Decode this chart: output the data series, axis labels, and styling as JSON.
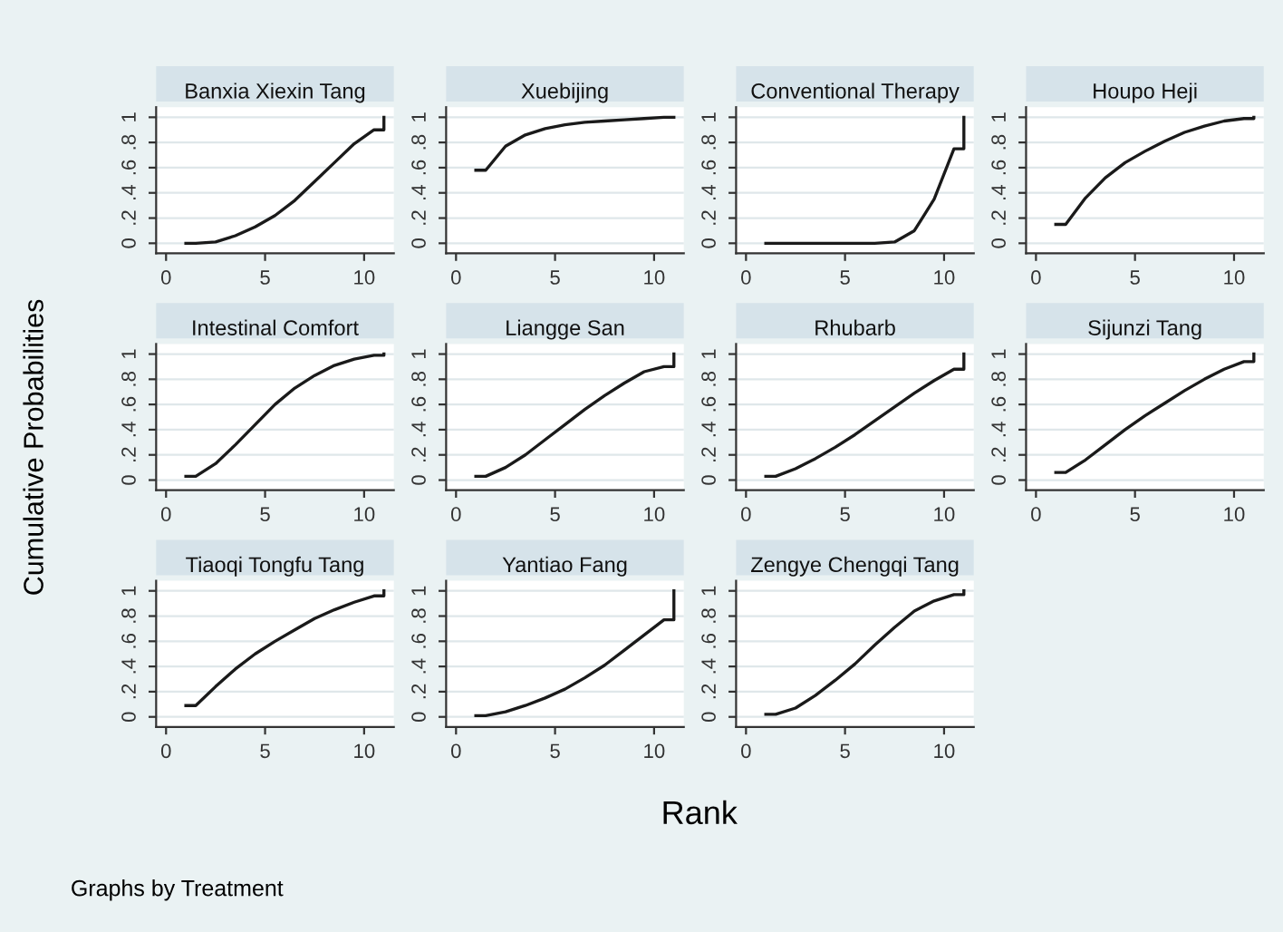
{
  "chart_data": [
    {
      "type": "line",
      "title": "Banxia Xiexin Tang",
      "x": [
        1,
        1.5,
        2.5,
        3.5,
        4.5,
        5.5,
        6.5,
        7.5,
        8.5,
        9.5,
        10.5,
        11,
        11
      ],
      "values": [
        0,
        0,
        0.01,
        0.06,
        0.13,
        0.22,
        0.34,
        0.49,
        0.64,
        0.79,
        0.9,
        0.9,
        1
      ],
      "color": "#1a1a1a",
      "xlim": [
        -0.5,
        11.5
      ],
      "ylim": [
        -0.08,
        1.08
      ],
      "xticks": [
        0,
        5,
        10
      ],
      "yticks": [
        0,
        {
          "value": 0.2,
          "label": ".2"
        },
        {
          "value": 0.4,
          "label": ".4"
        },
        {
          "value": 0.6,
          "label": ".6"
        },
        {
          "value": 0.8,
          "label": ".8"
        },
        1
      ],
      "grid": "y"
    },
    {
      "type": "line",
      "title": "Xuebijing",
      "x": [
        1,
        1.5,
        2.5,
        3.5,
        4.5,
        5.5,
        6.5,
        7.5,
        8.5,
        9.5,
        10.5,
        11,
        11
      ],
      "values": [
        0.58,
        0.58,
        0.77,
        0.86,
        0.91,
        0.94,
        0.96,
        0.97,
        0.98,
        0.99,
        1,
        1,
        1
      ],
      "color": "#1a1a1a",
      "xlim": [
        -0.5,
        11.5
      ],
      "ylim": [
        -0.08,
        1.08
      ],
      "xticks": [
        0,
        5,
        10
      ],
      "yticks": [
        0,
        {
          "value": 0.2,
          "label": ".2"
        },
        {
          "value": 0.4,
          "label": ".4"
        },
        {
          "value": 0.6,
          "label": ".6"
        },
        {
          "value": 0.8,
          "label": ".8"
        },
        1
      ],
      "grid": "y"
    },
    {
      "type": "line",
      "title": "Conventional Therapy",
      "x": [
        1,
        1.5,
        2.5,
        3.5,
        4.5,
        5.5,
        6.5,
        7.5,
        8.5,
        9.5,
        10.5,
        11,
        11
      ],
      "values": [
        0,
        0,
        0,
        0,
        0,
        0,
        0,
        0.01,
        0.1,
        0.35,
        0.75,
        0.75,
        1
      ],
      "color": "#1a1a1a",
      "xlim": [
        -0.5,
        11.5
      ],
      "ylim": [
        -0.08,
        1.08
      ],
      "xticks": [
        0,
        5,
        10
      ],
      "yticks": [
        0,
        {
          "value": 0.2,
          "label": ".2"
        },
        {
          "value": 0.4,
          "label": ".4"
        },
        {
          "value": 0.6,
          "label": ".6"
        },
        {
          "value": 0.8,
          "label": ".8"
        },
        1
      ],
      "grid": "y"
    },
    {
      "type": "line",
      "title": "Houpo Heji",
      "x": [
        1,
        1.5,
        2.5,
        3.5,
        4.5,
        5.5,
        6.5,
        7.5,
        8.5,
        9.5,
        10.5,
        11,
        11
      ],
      "values": [
        0.15,
        0.15,
        0.36,
        0.52,
        0.64,
        0.73,
        0.81,
        0.88,
        0.93,
        0.97,
        0.99,
        0.99,
        1
      ],
      "color": "#1a1a1a",
      "xlim": [
        -0.5,
        11.5
      ],
      "ylim": [
        -0.08,
        1.08
      ],
      "xticks": [
        0,
        5,
        10
      ],
      "yticks": [
        0,
        {
          "value": 0.2,
          "label": ".2"
        },
        {
          "value": 0.4,
          "label": ".4"
        },
        {
          "value": 0.6,
          "label": ".6"
        },
        {
          "value": 0.8,
          "label": ".8"
        },
        1
      ],
      "grid": "y"
    },
    {
      "type": "line",
      "title": "Intestinal Comfort",
      "ylabel": "Cumulative Probabilities",
      "x": [
        1,
        1.5,
        2.5,
        3.5,
        4.5,
        5.5,
        6.5,
        7.5,
        8.5,
        9.5,
        10.5,
        11,
        11
      ],
      "values": [
        0.03,
        0.03,
        0.13,
        0.28,
        0.44,
        0.6,
        0.73,
        0.83,
        0.91,
        0.96,
        0.99,
        0.99,
        1
      ],
      "color": "#1a1a1a",
      "xlim": [
        -0.5,
        11.5
      ],
      "ylim": [
        -0.08,
        1.08
      ],
      "xticks": [
        0,
        5,
        10
      ],
      "yticks": [
        0,
        {
          "value": 0.2,
          "label": ".2"
        },
        {
          "value": 0.4,
          "label": ".4"
        },
        {
          "value": 0.6,
          "label": ".6"
        },
        {
          "value": 0.8,
          "label": ".8"
        },
        1
      ],
      "grid": "y"
    },
    {
      "type": "line",
      "title": "Liangge San",
      "x": [
        1,
        1.5,
        2.5,
        3.5,
        4.5,
        5.5,
        6.5,
        7.5,
        8.5,
        9.5,
        10.5,
        11,
        11
      ],
      "values": [
        0.03,
        0.03,
        0.1,
        0.2,
        0.32,
        0.44,
        0.56,
        0.67,
        0.77,
        0.86,
        0.9,
        0.9,
        1
      ],
      "color": "#1a1a1a",
      "xlim": [
        -0.5,
        11.5
      ],
      "ylim": [
        -0.08,
        1.08
      ],
      "xticks": [
        0,
        5,
        10
      ],
      "yticks": [
        0,
        {
          "value": 0.2,
          "label": ".2"
        },
        {
          "value": 0.4,
          "label": ".4"
        },
        {
          "value": 0.6,
          "label": ".6"
        },
        {
          "value": 0.8,
          "label": ".8"
        },
        1
      ],
      "grid": "y"
    },
    {
      "type": "line",
      "title": "Rhubarb",
      "x": [
        1,
        1.5,
        2.5,
        3.5,
        4.5,
        5.5,
        6.5,
        7.5,
        8.5,
        9.5,
        10.5,
        11,
        11
      ],
      "values": [
        0.03,
        0.03,
        0.09,
        0.17,
        0.26,
        0.36,
        0.47,
        0.58,
        0.69,
        0.79,
        0.88,
        0.88,
        1
      ],
      "color": "#1a1a1a",
      "xlim": [
        -0.5,
        11.5
      ],
      "ylim": [
        -0.08,
        1.08
      ],
      "xticks": [
        0,
        5,
        10
      ],
      "yticks": [
        0,
        {
          "value": 0.2,
          "label": ".2"
        },
        {
          "value": 0.4,
          "label": ".4"
        },
        {
          "value": 0.6,
          "label": ".6"
        },
        {
          "value": 0.8,
          "label": ".8"
        },
        1
      ],
      "grid": "y"
    },
    {
      "type": "line",
      "title": "Sijunzi Tang",
      "x": [
        1,
        1.5,
        2.5,
        3.5,
        4.5,
        5.5,
        6.5,
        7.5,
        8.5,
        9.5,
        10.5,
        11,
        11
      ],
      "values": [
        0.06,
        0.06,
        0.16,
        0.28,
        0.4,
        0.51,
        0.61,
        0.71,
        0.8,
        0.88,
        0.94,
        0.94,
        1
      ],
      "color": "#1a1a1a",
      "xlim": [
        -0.5,
        11.5
      ],
      "ylim": [
        -0.08,
        1.08
      ],
      "xticks": [
        0,
        5,
        10
      ],
      "yticks": [
        0,
        {
          "value": 0.2,
          "label": ".2"
        },
        {
          "value": 0.4,
          "label": ".4"
        },
        {
          "value": 0.6,
          "label": ".6"
        },
        {
          "value": 0.8,
          "label": ".8"
        },
        1
      ],
      "grid": "y"
    },
    {
      "type": "line",
      "title": "Tiaoqi Tongfu Tang",
      "annotations": [
        "Graphs by Treatment"
      ],
      "x": [
        1,
        1.5,
        2.5,
        3.5,
        4.5,
        5.5,
        6.5,
        7.5,
        8.5,
        9.5,
        10.5,
        11,
        11
      ],
      "values": [
        0.09,
        0.09,
        0.24,
        0.38,
        0.5,
        0.6,
        0.69,
        0.78,
        0.85,
        0.91,
        0.96,
        0.96,
        1
      ],
      "color": "#1a1a1a",
      "xlim": [
        -0.5,
        11.5
      ],
      "ylim": [
        -0.08,
        1.08
      ],
      "xticks": [
        0,
        5,
        10
      ],
      "yticks": [
        0,
        {
          "value": 0.2,
          "label": ".2"
        },
        {
          "value": 0.4,
          "label": ".4"
        },
        {
          "value": 0.6,
          "label": ".6"
        },
        {
          "value": 0.8,
          "label": ".8"
        },
        1
      ],
      "grid": "y"
    },
    {
      "type": "line",
      "title": "Yantiao Fang",
      "xlabel": "Rank",
      "x": [
        1,
        1.5,
        2.5,
        3.5,
        4.5,
        5.5,
        6.5,
        7.5,
        8.5,
        9.5,
        10.5,
        11,
        11
      ],
      "values": [
        0.01,
        0.01,
        0.04,
        0.09,
        0.15,
        0.22,
        0.31,
        0.41,
        0.53,
        0.65,
        0.77,
        0.77,
        1
      ],
      "color": "#1a1a1a",
      "xlim": [
        -0.5,
        11.5
      ],
      "ylim": [
        -0.08,
        1.08
      ],
      "xticks": [
        0,
        5,
        10
      ],
      "yticks": [
        0,
        {
          "value": 0.2,
          "label": ".2"
        },
        {
          "value": 0.4,
          "label": ".4"
        },
        {
          "value": 0.6,
          "label": ".6"
        },
        {
          "value": 0.8,
          "label": ".8"
        },
        1
      ],
      "grid": "y"
    },
    {
      "type": "line",
      "title": "Zengye Chengqi Tang",
      "x": [
        1,
        1.5,
        2.5,
        3.5,
        4.5,
        5.5,
        6.5,
        7.5,
        8.5,
        9.5,
        10.5,
        11,
        11
      ],
      "values": [
        0.02,
        0.02,
        0.07,
        0.17,
        0.29,
        0.42,
        0.57,
        0.71,
        0.84,
        0.92,
        0.97,
        0.97,
        1
      ],
      "color": "#1a1a1a",
      "xlim": [
        -0.5,
        11.5
      ],
      "ylim": [
        -0.08,
        1.08
      ],
      "xticks": [
        0,
        5,
        10
      ],
      "yticks": [
        0,
        {
          "value": 0.2,
          "label": ".2"
        },
        {
          "value": 0.4,
          "label": ".4"
        },
        {
          "value": 0.6,
          "label": ".6"
        },
        {
          "value": 0.8,
          "label": ".8"
        },
        1
      ],
      "grid": "y"
    }
  ]
}
